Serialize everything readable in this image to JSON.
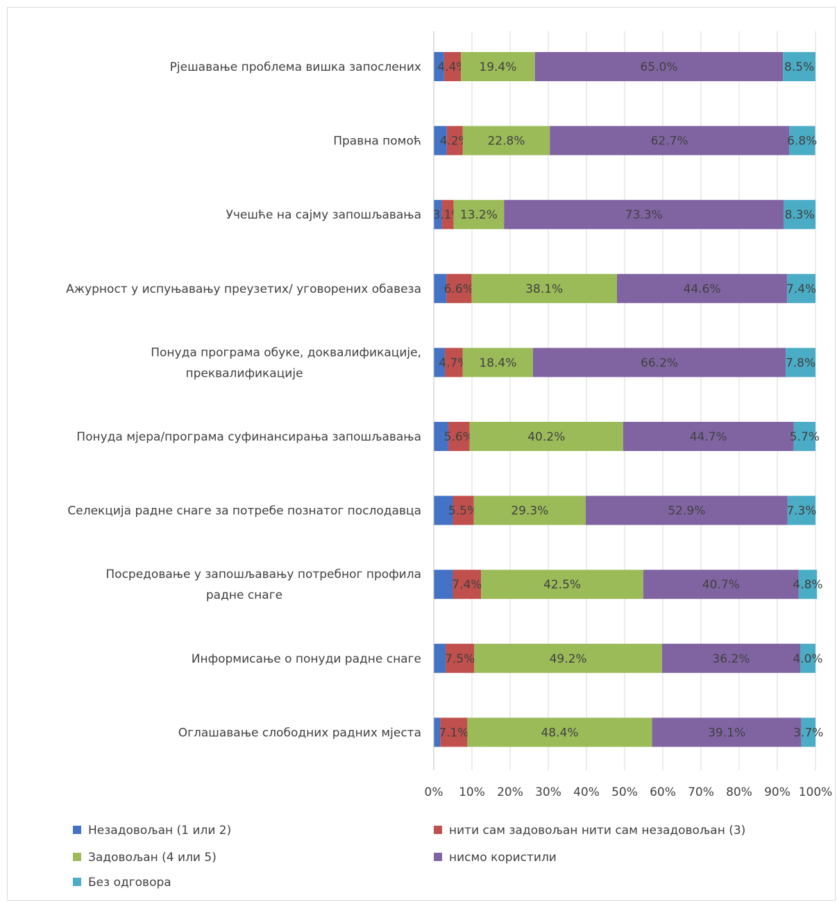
{
  "chart_data": {
    "type": "bar",
    "orientation": "horizontal",
    "stacked": true,
    "percent_stacked": true,
    "categories": [
      [
        "Рјешавање проблема вишка запослених"
      ],
      [
        "Правна помоћ"
      ],
      [
        "Учешће на сајму запошљавања"
      ],
      [
        "Ажурност у испуњавању преузетих/ уговорених обавеза"
      ],
      [
        "Понуда програма обуке, доквалификације,",
        "преквалификације"
      ],
      [
        "Понуда мјера/програма суфинансирања запошљавања"
      ],
      [
        "Селекција радне снаге за потребе познатог послодавца"
      ],
      [
        "Посредовање у запошљавању потребног профила",
        "радне снаге"
      ],
      [
        "Информисање о понуди радне снаге"
      ],
      [
        "Оглашавање слободних радних мјеста"
      ]
    ],
    "series": [
      {
        "name": "Незадовољан (1 или 2)",
        "color": "#4472c4",
        "values": [
          2.7,
          3.4,
          2.1,
          3.3,
          2.9,
          3.8,
          5.0,
          5.0,
          3.1,
          1.7
        ],
        "labels": [
          "",
          "",
          "",
          "",
          "",
          "",
          "",
          "",
          "",
          ""
        ]
      },
      {
        "name": "нити сам задовољан нити сам незадовољан (3)",
        "color": "#c0504d",
        "values": [
          4.4,
          4.2,
          3.1,
          6.6,
          4.7,
          5.6,
          5.5,
          7.4,
          7.5,
          7.1
        ],
        "labels": [
          "4.4%",
          "4.2%",
          "3.1%",
          "6.6%",
          "4.7%",
          "5.6%",
          "5.5%",
          "7.4%",
          "7.5%",
          "7.1%"
        ]
      },
      {
        "name": "Задовољан (4 или 5)",
        "color": "#9bbb59",
        "values": [
          19.4,
          22.8,
          13.2,
          38.1,
          18.4,
          40.2,
          29.3,
          42.5,
          49.2,
          48.4
        ],
        "labels": [
          "19.4%",
          "22.8%",
          "13.2%",
          "38.1%",
          "18.4%",
          "40.2%",
          "29.3%",
          "42.5%",
          "49.2%",
          "48.4%"
        ]
      },
      {
        "name": "нисмо користили",
        "color": "#8064a2",
        "values": [
          65.0,
          62.7,
          73.3,
          44.6,
          66.2,
          44.7,
          52.9,
          40.7,
          36.2,
          39.1
        ],
        "labels": [
          "65.0%",
          "62.7%",
          "73.3%",
          "44.6%",
          "66.2%",
          "44.7%",
          "52.9%",
          "40.7%",
          "36.2%",
          "39.1%"
        ]
      },
      {
        "name": "Без одговора",
        "color": "#4bacc6",
        "values": [
          8.5,
          6.8,
          8.3,
          7.4,
          7.8,
          5.7,
          7.3,
          4.8,
          4.0,
          3.7
        ],
        "labels": [
          "8.5%",
          "6.8%",
          "8.3%",
          "7.4%",
          "7.8%",
          "5.7%",
          "7.3%",
          "4.8%",
          "4.0%",
          "3.7%"
        ]
      }
    ],
    "xlim": [
      0,
      100
    ],
    "x_ticks": [
      "0%",
      "10%",
      "20%",
      "30%",
      "40%",
      "50%",
      "60%",
      "70%",
      "80%",
      "90%",
      "100%"
    ],
    "grid": "vertical",
    "legend_position": "bottom",
    "title": "",
    "xlabel": "",
    "ylabel": ""
  }
}
